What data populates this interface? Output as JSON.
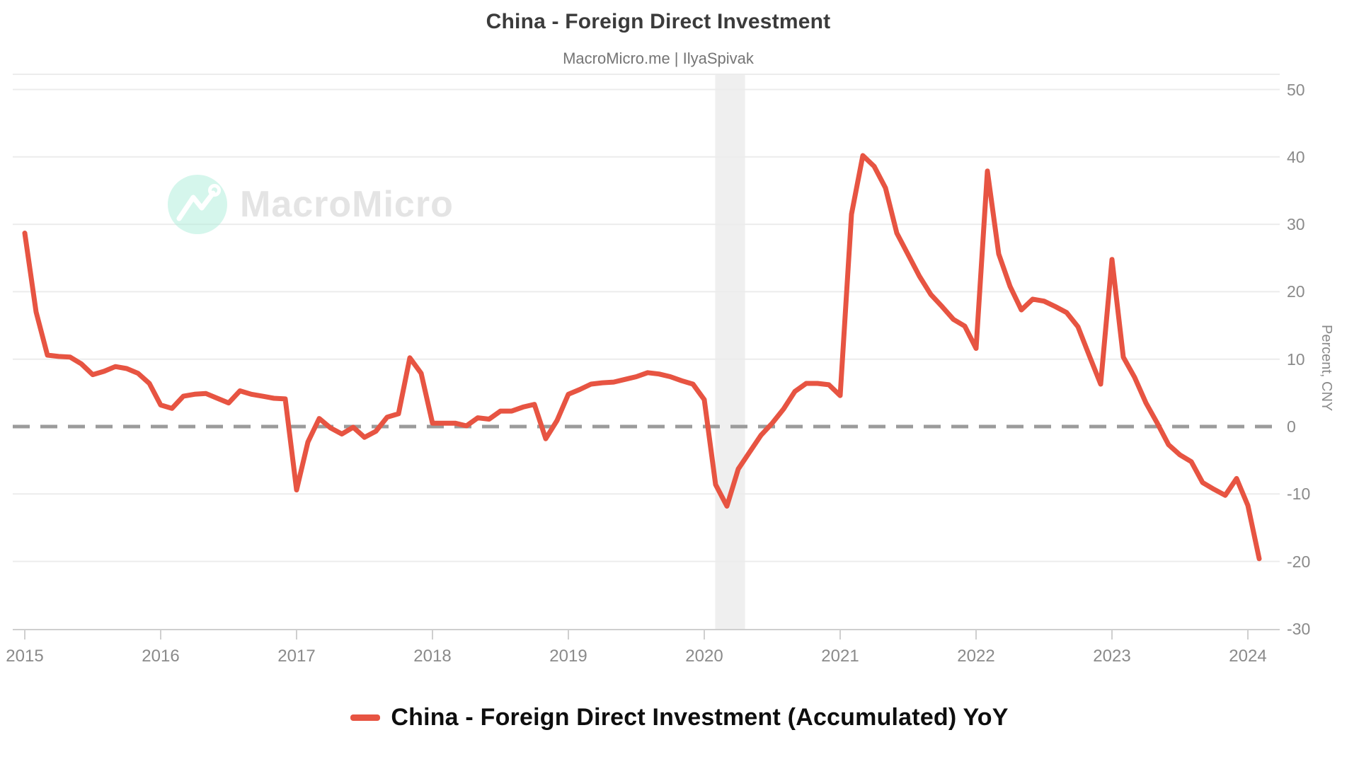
{
  "header": {
    "title": "China - Foreign Direct Investment",
    "subtitle": "MacroMicro.me | IlyaSpivak"
  },
  "watermark": {
    "text": "MacroMicro",
    "icon": "line-chart-logo-icon",
    "circle_color": "#bfeede",
    "text_color": "#e4e4e4"
  },
  "legend": {
    "label": "China - Foreign Direct Investment (Accumulated) YoY",
    "marker_color": "#e75442"
  },
  "colors": {
    "series_line": "#e75442",
    "zero_dash_line": "#9b9b9b",
    "gridline": "#ececec",
    "axis_line": "#cfcfcf",
    "recession_band": "#efefef",
    "tick_text": "#8a8a8a"
  },
  "chart_data": {
    "type": "line",
    "title": "China - Foreign Direct Investment",
    "subtitle": "MacroMicro.me | IlyaSpivak",
    "xlabel": "",
    "ylabel": "Percent, CNY",
    "ylabel_side": "right",
    "ylim": [
      -30,
      50
    ],
    "yticks": [
      50,
      40,
      30,
      20,
      10,
      0,
      -10,
      -20,
      -30
    ],
    "xticks": [
      2015,
      2016,
      2017,
      2018,
      2019,
      2020,
      2021,
      2022,
      2023,
      2024
    ],
    "grid": true,
    "legend_position": "bottom",
    "zero_line": {
      "style": "dashed",
      "color": "#9b9b9b"
    },
    "recession_band": {
      "start": 2020.08,
      "end": 2020.3,
      "color": "#efefef"
    },
    "series": [
      {
        "name": "China - Foreign Direct Investment (Accumulated) YoY",
        "color": "#e75442",
        "frequency": "monthly",
        "start_year": 2015,
        "start_month": 1,
        "values": [
          28.7,
          17.0,
          10.6,
          10.4,
          10.3,
          9.3,
          7.7,
          8.2,
          8.9,
          8.6,
          7.9,
          6.4,
          3.2,
          2.7,
          4.5,
          4.8,
          4.9,
          4.2,
          3.5,
          5.3,
          4.8,
          4.5,
          4.2,
          4.1,
          -9.4,
          -2.3,
          1.2,
          -0.2,
          -1.1,
          -0.1,
          -1.6,
          -0.7,
          1.4,
          1.9,
          10.2,
          7.9,
          0.5,
          0.5,
          0.5,
          0.1,
          1.3,
          1.1,
          2.3,
          2.3,
          2.9,
          3.3,
          -1.8,
          0.9,
          4.8,
          5.5,
          6.3,
          6.5,
          6.6,
          7.0,
          7.4,
          8.0,
          7.8,
          7.4,
          6.8,
          6.3,
          4.0,
          -8.6,
          -11.8,
          -6.3,
          -3.8,
          -1.3,
          0.5,
          2.6,
          5.2,
          6.4,
          6.4,
          6.2,
          4.6,
          31.5,
          40.2,
          38.6,
          35.4,
          28.7,
          25.5,
          22.3,
          19.6,
          17.8,
          15.9,
          14.9,
          11.6,
          37.9,
          25.6,
          20.8,
          17.3,
          18.9,
          18.6,
          17.8,
          16.9,
          14.8,
          10.5,
          6.3,
          24.8,
          10.3,
          7.3,
          3.5,
          0.5,
          -2.7,
          -4.2,
          -5.2,
          -8.3,
          -9.3,
          -10.2,
          -7.7,
          -11.7,
          -19.6
        ]
      }
    ]
  }
}
